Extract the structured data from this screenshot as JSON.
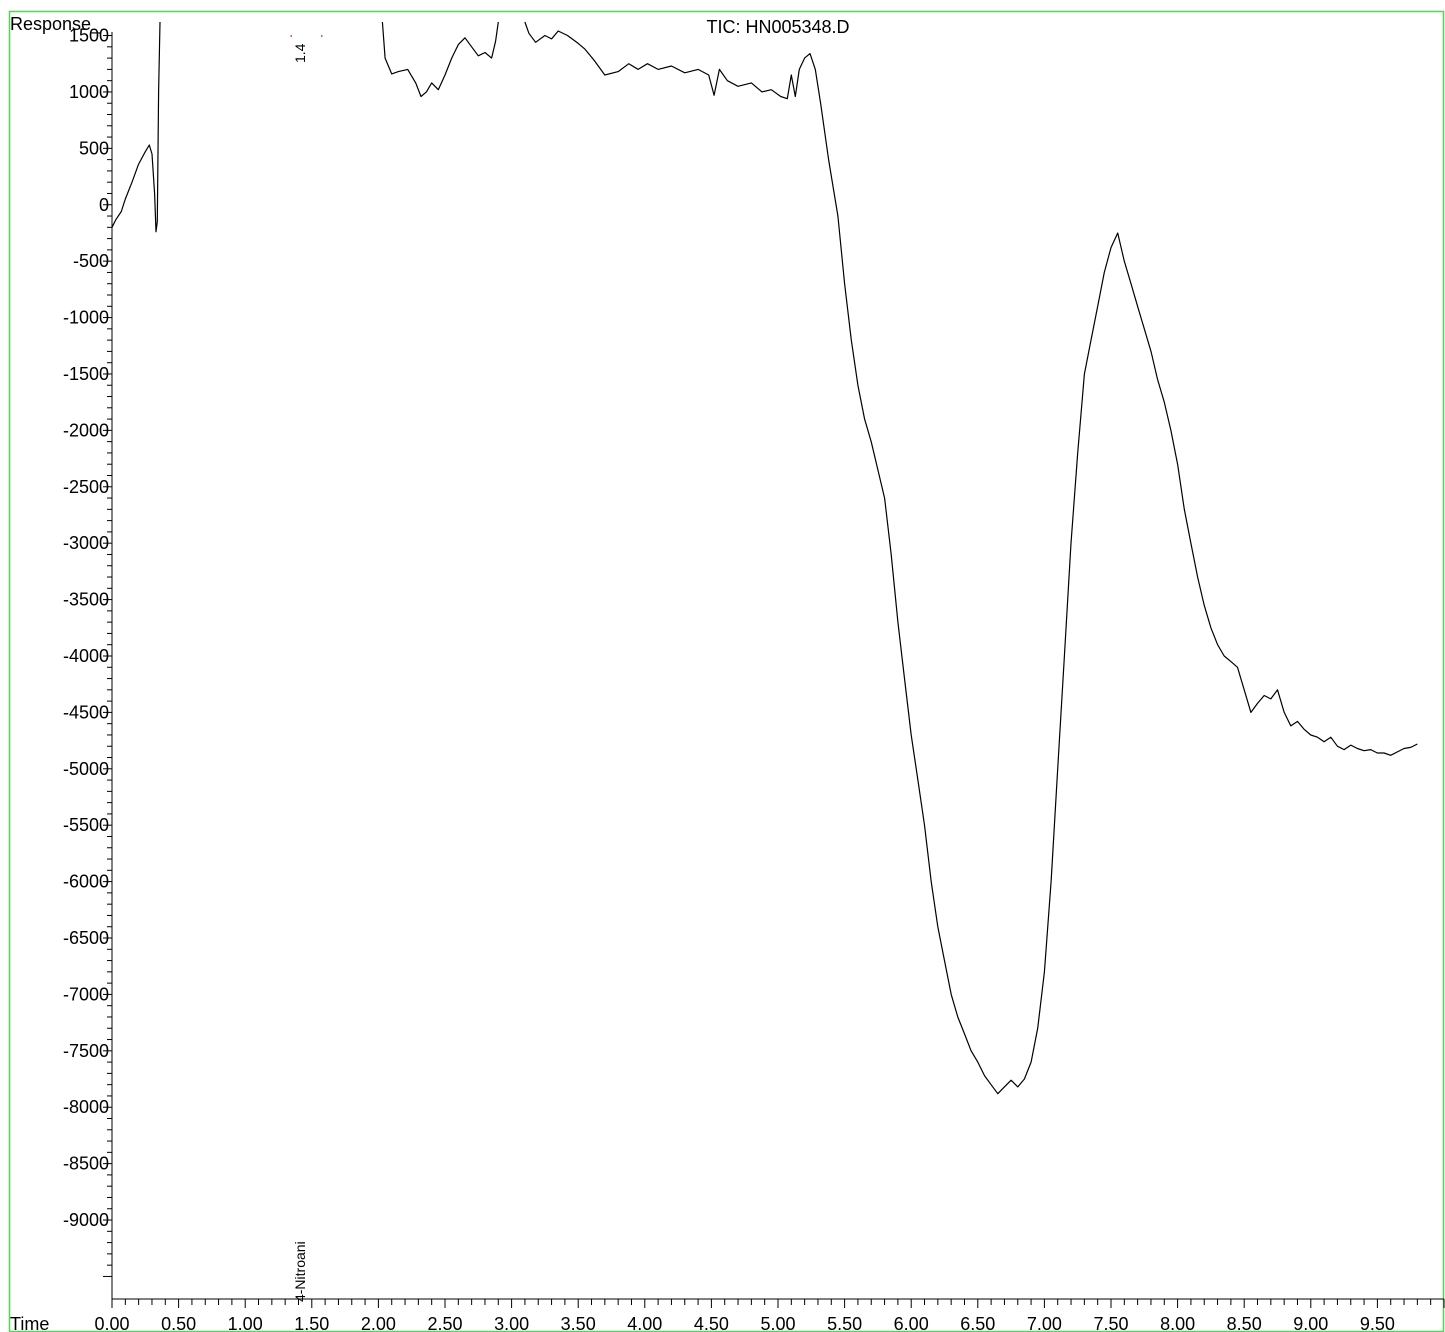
{
  "chart_data": {
    "type": "line",
    "title": "TIC: HN005348.D",
    "ylabel": "Response_",
    "xlabel": "Time",
    "xlim": [
      0.0,
      10.0
    ],
    "ylim": [
      -9700,
      1620
    ],
    "x_ticks": [
      "0.00",
      "0.50",
      "1.00",
      "1.50",
      "2.00",
      "2.50",
      "3.00",
      "3.50",
      "4.00",
      "4.50",
      "5.00",
      "5.50",
      "6.00",
      "6.50",
      "7.00",
      "7.50",
      "8.00",
      "8.50",
      "9.00",
      "9.50"
    ],
    "x_tick_values": [
      0.0,
      0.5,
      1.0,
      1.5,
      2.0,
      2.5,
      3.0,
      3.5,
      4.0,
      4.5,
      5.0,
      5.5,
      6.0,
      6.5,
      7.0,
      7.5,
      8.0,
      8.5,
      9.0,
      9.5
    ],
    "y_ticks": [
      "1500",
      "1000",
      "500",
      "0",
      "-500",
      "-1000",
      "-1500",
      "-2000",
      "-2500",
      "-3000",
      "-3500",
      "-4000",
      "-4500",
      "-5000",
      "-5500",
      "-6000",
      "-6500",
      "-7000",
      "-7500",
      "-8000",
      "-8500",
      "-9000"
    ],
    "y_tick_values": [
      1500,
      1000,
      500,
      0,
      -500,
      -1000,
      -1500,
      -2000,
      -2500,
      -3000,
      -3500,
      -4000,
      -4500,
      -5000,
      -5500,
      -6000,
      -6500,
      -7000,
      -7500,
      -8000,
      -8500,
      -9000
    ],
    "series": [
      {
        "color": "#000000",
        "segments": [
          [
            [
              0.0,
              -200
            ],
            [
              0.03,
              -130
            ],
            [
              0.07,
              -60
            ],
            [
              0.1,
              50
            ],
            [
              0.15,
              200
            ],
            [
              0.2,
              360
            ],
            [
              0.25,
              470
            ],
            [
              0.28,
              530
            ],
            [
              0.3,
              450
            ],
            [
              0.32,
              100
            ],
            [
              0.33,
              -240
            ],
            [
              0.34,
              -150
            ],
            [
              0.35,
              1000
            ],
            [
              0.36,
              1620
            ]
          ],
          [
            [
              2.03,
              1620
            ],
            [
              2.05,
              1300
            ],
            [
              2.1,
              1160
            ],
            [
              2.15,
              1180
            ],
            [
              2.22,
              1200
            ],
            [
              2.28,
              1080
            ],
            [
              2.32,
              960
            ],
            [
              2.36,
              1000
            ],
            [
              2.4,
              1080
            ],
            [
              2.45,
              1020
            ],
            [
              2.5,
              1150
            ],
            [
              2.55,
              1300
            ],
            [
              2.6,
              1420
            ],
            [
              2.65,
              1480
            ],
            [
              2.7,
              1400
            ],
            [
              2.75,
              1320
            ],
            [
              2.8,
              1350
            ],
            [
              2.85,
              1300
            ],
            [
              2.88,
              1450
            ],
            [
              2.9,
              1620
            ]
          ],
          [
            [
              3.1,
              1620
            ],
            [
              3.13,
              1520
            ],
            [
              3.18,
              1440
            ],
            [
              3.25,
              1500
            ],
            [
              3.3,
              1470
            ],
            [
              3.35,
              1540
            ],
            [
              3.42,
              1500
            ],
            [
              3.5,
              1430
            ],
            [
              3.55,
              1380
            ],
            [
              3.62,
              1280
            ],
            [
              3.7,
              1150
            ],
            [
              3.8,
              1180
            ],
            [
              3.88,
              1250
            ],
            [
              3.95,
              1200
            ],
            [
              4.02,
              1250
            ],
            [
              4.1,
              1200
            ],
            [
              4.2,
              1230
            ],
            [
              4.3,
              1170
            ],
            [
              4.4,
              1200
            ],
            [
              4.48,
              1150
            ],
            [
              4.52,
              970
            ],
            [
              4.56,
              1200
            ],
            [
              4.62,
              1100
            ],
            [
              4.7,
              1050
            ],
            [
              4.8,
              1080
            ],
            [
              4.88,
              1000
            ],
            [
              4.95,
              1020
            ],
            [
              5.02,
              960
            ],
            [
              5.07,
              940
            ],
            [
              5.1,
              1150
            ],
            [
              5.13,
              960
            ],
            [
              5.16,
              1200
            ],
            [
              5.2,
              1300
            ],
            [
              5.24,
              1340
            ],
            [
              5.28,
              1200
            ],
            [
              5.32,
              900
            ],
            [
              5.38,
              400
            ],
            [
              5.45,
              -100
            ],
            [
              5.5,
              -700
            ],
            [
              5.55,
              -1200
            ],
            [
              5.6,
              -1600
            ],
            [
              5.65,
              -1900
            ],
            [
              5.7,
              -2100
            ],
            [
              5.75,
              -2350
            ],
            [
              5.8,
              -2600
            ],
            [
              5.85,
              -3100
            ],
            [
              5.9,
              -3700
            ],
            [
              5.95,
              -4200
            ],
            [
              6.0,
              -4700
            ],
            [
              6.05,
              -5100
            ],
            [
              6.1,
              -5500
            ],
            [
              6.15,
              -6000
            ],
            [
              6.2,
              -6400
            ],
            [
              6.25,
              -6700
            ],
            [
              6.3,
              -7000
            ],
            [
              6.35,
              -7200
            ],
            [
              6.4,
              -7350
            ],
            [
              6.45,
              -7500
            ],
            [
              6.5,
              -7600
            ],
            [
              6.55,
              -7720
            ],
            [
              6.6,
              -7800
            ],
            [
              6.65,
              -7880
            ],
            [
              6.7,
              -7820
            ],
            [
              6.75,
              -7760
            ],
            [
              6.8,
              -7820
            ],
            [
              6.85,
              -7750
            ],
            [
              6.9,
              -7600
            ],
            [
              6.95,
              -7300
            ],
            [
              7.0,
              -6800
            ],
            [
              7.05,
              -6000
            ],
            [
              7.1,
              -5000
            ],
            [
              7.15,
              -4000
            ],
            [
              7.2,
              -3000
            ],
            [
              7.25,
              -2200
            ],
            [
              7.3,
              -1500
            ],
            [
              7.35,
              -1200
            ],
            [
              7.4,
              -900
            ],
            [
              7.45,
              -600
            ],
            [
              7.5,
              -380
            ],
            [
              7.55,
              -250
            ],
            [
              7.6,
              -500
            ],
            [
              7.65,
              -700
            ],
            [
              7.7,
              -900
            ],
            [
              7.75,
              -1100
            ],
            [
              7.8,
              -1300
            ],
            [
              7.85,
              -1550
            ],
            [
              7.9,
              -1750
            ],
            [
              7.95,
              -2000
            ],
            [
              8.0,
              -2300
            ],
            [
              8.05,
              -2700
            ],
            [
              8.1,
              -3000
            ],
            [
              8.15,
              -3300
            ],
            [
              8.2,
              -3550
            ],
            [
              8.25,
              -3750
            ],
            [
              8.3,
              -3900
            ],
            [
              8.35,
              -4000
            ],
            [
              8.4,
              -4050
            ],
            [
              8.45,
              -4100
            ],
            [
              8.5,
              -4300
            ],
            [
              8.55,
              -4500
            ],
            [
              8.6,
              -4420
            ],
            [
              8.65,
              -4350
            ],
            [
              8.7,
              -4380
            ],
            [
              8.75,
              -4300
            ],
            [
              8.8,
              -4500
            ],
            [
              8.85,
              -4620
            ],
            [
              8.9,
              -4580
            ],
            [
              8.95,
              -4650
            ],
            [
              9.0,
              -4700
            ],
            [
              9.05,
              -4720
            ],
            [
              9.1,
              -4760
            ],
            [
              9.15,
              -4720
            ],
            [
              9.2,
              -4800
            ],
            [
              9.25,
              -4830
            ],
            [
              9.3,
              -4790
            ],
            [
              9.35,
              -4820
            ],
            [
              9.4,
              -4840
            ],
            [
              9.45,
              -4830
            ],
            [
              9.5,
              -4860
            ],
            [
              9.55,
              -4860
            ],
            [
              9.6,
              -4880
            ],
            [
              9.65,
              -4850
            ],
            [
              9.7,
              -4820
            ],
            [
              9.75,
              -4810
            ],
            [
              9.8,
              -4780
            ]
          ]
        ]
      }
    ],
    "annotations": [
      {
        "text": "1.4",
        "x": 1.41
      },
      {
        "text": "4-Nitroani",
        "x": 1.41
      }
    ]
  }
}
